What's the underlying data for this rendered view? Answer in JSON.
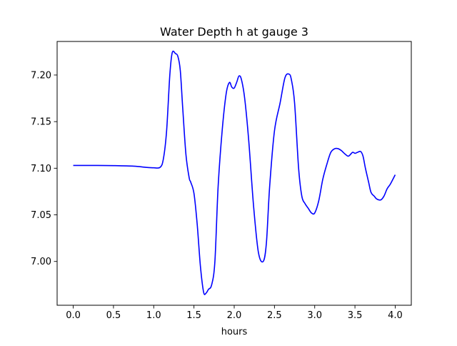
{
  "chart_data": {
    "type": "line",
    "title": "Water Depth h at gauge 3",
    "xlabel": "hours",
    "ylabel": "",
    "xlim": [
      -0.2,
      4.2
    ],
    "ylim": [
      6.953,
      7.236
    ],
    "xticks": [
      0.0,
      0.5,
      1.0,
      1.5,
      2.0,
      2.5,
      3.0,
      3.5,
      4.0
    ],
    "xtick_labels": [
      "0.0",
      "0.5",
      "1.0",
      "1.5",
      "2.0",
      "2.5",
      "3.0",
      "3.5",
      "4.0"
    ],
    "yticks": [
      7.0,
      7.05,
      7.1,
      7.15,
      7.2
    ],
    "ytick_labels": [
      "7.00",
      "7.05",
      "7.10",
      "7.15",
      "7.20"
    ],
    "grid": false,
    "legend": "none",
    "series_color": "#0000ff",
    "x": [
      0.0,
      0.3,
      0.5,
      0.75,
      0.9,
      1.0,
      1.08,
      1.12,
      1.16,
      1.2,
      1.23,
      1.27,
      1.3,
      1.33,
      1.36,
      1.4,
      1.44,
      1.46,
      1.5,
      1.54,
      1.58,
      1.62,
      1.65,
      1.68,
      1.72,
      1.76,
      1.8,
      1.85,
      1.9,
      1.94,
      1.97,
      2.0,
      2.03,
      2.06,
      2.09,
      2.13,
      2.18,
      2.24,
      2.3,
      2.36,
      2.4,
      2.44,
      2.5,
      2.57,
      2.63,
      2.68,
      2.71,
      2.75,
      2.8,
      2.84,
      2.88,
      2.92,
      2.96,
      3.0,
      3.05,
      3.1,
      3.15,
      3.2,
      3.25,
      3.29,
      3.33,
      3.38,
      3.42,
      3.47,
      3.5,
      3.53,
      3.57,
      3.6,
      3.63,
      3.67,
      3.7,
      3.74,
      3.77,
      3.82,
      3.86,
      3.9,
      3.94,
      4.0
    ],
    "y": [
      7.103,
      7.103,
      7.1028,
      7.1022,
      7.101,
      7.1005,
      7.101,
      7.11,
      7.14,
      7.2,
      7.224,
      7.223,
      7.22,
      7.205,
      7.165,
      7.115,
      7.09,
      7.085,
      7.073,
      7.04,
      6.995,
      6.967,
      6.966,
      6.97,
      6.975,
      7.0,
      7.08,
      7.14,
      7.18,
      7.192,
      7.187,
      7.186,
      7.192,
      7.199,
      7.195,
      7.175,
      7.13,
      7.06,
      7.01,
      7.0,
      7.02,
      7.08,
      7.14,
      7.17,
      7.197,
      7.201,
      7.195,
      7.17,
      7.1,
      7.07,
      7.062,
      7.057,
      7.052,
      7.052,
      7.065,
      7.088,
      7.104,
      7.117,
      7.121,
      7.121,
      7.119,
      7.115,
      7.113,
      7.117,
      7.116,
      7.117,
      7.118,
      7.113,
      7.1,
      7.085,
      7.074,
      7.07,
      7.067,
      7.066,
      7.07,
      7.078,
      7.083,
      7.093
    ]
  }
}
